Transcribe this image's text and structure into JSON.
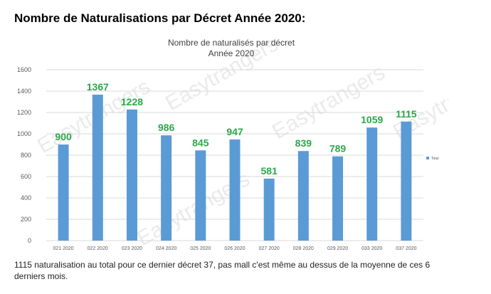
{
  "page": {
    "title": "Nombre de Naturalisations par Décret Année 2020:",
    "caption": "1115 naturalisation au total pour ce dernier décret 37, pas mall c'est même au dessus de la moyenne de ces 6 derniers mois."
  },
  "watermark": {
    "text": "Easytrangers"
  },
  "chart_data": {
    "type": "bar",
    "title": "Nombre de naturalisés par décret",
    "subtitle": "Année 2020",
    "categories": [
      "021 2020",
      "022 2020",
      "023 2020",
      "024 2020",
      "025 2020",
      "026 2020",
      "027 2020",
      "028 2020",
      "029 2020",
      "033 2020",
      "037 2020"
    ],
    "series": [
      {
        "name": "Total",
        "values": [
          900,
          1367,
          1228,
          986,
          845,
          947,
          581,
          839,
          789,
          1059,
          1115
        ]
      }
    ],
    "ylim": [
      0,
      1600
    ],
    "yticks": [
      0,
      200,
      400,
      600,
      800,
      1000,
      1200,
      1400,
      1600
    ],
    "grid": true,
    "legend": "right",
    "colors": {
      "bar": "#5b9bd5",
      "data_label": "#2aa84a",
      "grid": "#d9d9d9"
    }
  }
}
